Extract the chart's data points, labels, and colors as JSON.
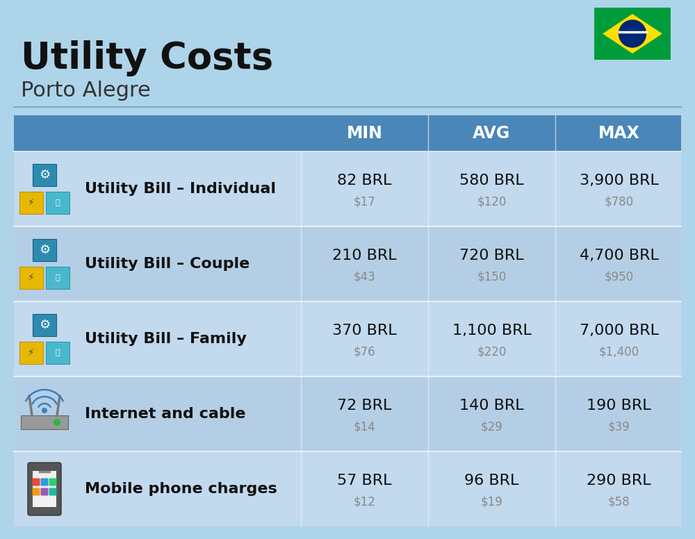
{
  "title": "Utility Costs",
  "subtitle": "Porto Alegre",
  "background_color": "#aed4ea",
  "header_color": "#4a86b8",
  "header_text_color": "#ffffff",
  "row_color_odd": "#c2d9ee",
  "row_color_even": "#b4cfe5",
  "col_headers": [
    "MIN",
    "AVG",
    "MAX"
  ],
  "rows": [
    {
      "label": "Utility Bill – Individual",
      "icon": "utility",
      "min_brl": "82 BRL",
      "min_usd": "$17",
      "avg_brl": "580 BRL",
      "avg_usd": "$120",
      "max_brl": "3,900 BRL",
      "max_usd": "$780"
    },
    {
      "label": "Utility Bill – Couple",
      "icon": "utility",
      "min_brl": "210 BRL",
      "min_usd": "$43",
      "avg_brl": "720 BRL",
      "avg_usd": "$150",
      "max_brl": "4,700 BRL",
      "max_usd": "$950"
    },
    {
      "label": "Utility Bill – Family",
      "icon": "utility",
      "min_brl": "370 BRL",
      "min_usd": "$76",
      "avg_brl": "1,100 BRL",
      "avg_usd": "$220",
      "max_brl": "7,000 BRL",
      "max_usd": "$1,400"
    },
    {
      "label": "Internet and cable",
      "icon": "internet",
      "min_brl": "72 BRL",
      "min_usd": "$14",
      "avg_brl": "140 BRL",
      "avg_usd": "$29",
      "max_brl": "190 BRL",
      "max_usd": "$39"
    },
    {
      "label": "Mobile phone charges",
      "icon": "mobile",
      "min_brl": "57 BRL",
      "min_usd": "$12",
      "avg_brl": "96 BRL",
      "avg_usd": "$19",
      "max_brl": "290 BRL",
      "max_usd": "$58"
    }
  ],
  "title_fontsize": 38,
  "subtitle_fontsize": 22,
  "header_fontsize": 17,
  "label_fontsize": 16,
  "value_fontsize": 16,
  "usd_fontsize": 12,
  "brazil_flag_colors": {
    "green": "#009c3b",
    "yellow": "#ffdf00",
    "blue": "#002776",
    "white": "#ffffff"
  }
}
